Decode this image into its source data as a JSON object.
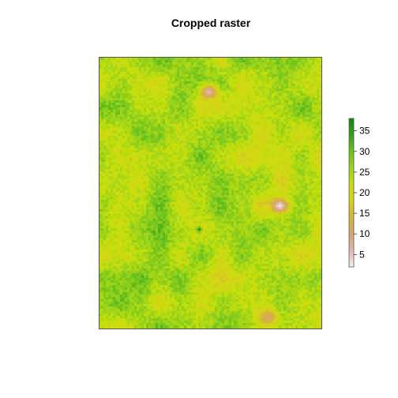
{
  "chart_data": {
    "type": "heatmap",
    "title": "Cropped raster",
    "xlabel": "",
    "ylabel": "",
    "grid": false,
    "colorbar": {
      "placement": "right",
      "range": [
        2,
        38
      ],
      "ticks": [
        5,
        10,
        15,
        20,
        25,
        30,
        35
      ],
      "tick_labels": [
        "5",
        "10",
        "15",
        "20",
        "25",
        "30",
        "35"
      ],
      "colors": [
        "#F2F2F2",
        "#E0B7A8",
        "#D7A56C",
        "#D4B33A",
        "#D9D21A",
        "#C7E00A",
        "#9CD31B",
        "#6CC31D",
        "#33A11A",
        "#0A8A0A"
      ]
    },
    "dimensions": {
      "columns": 94,
      "rows": 114
    },
    "typical_range": [
      18,
      30
    ],
    "dark_spots": [
      {
        "col": 42,
        "row": 72,
        "value": 37
      }
    ],
    "low_spots": [
      {
        "col": 46,
        "row": 14,
        "value": 6
      },
      {
        "col": 76,
        "row": 62,
        "value": 3
      },
      {
        "col": 71,
        "row": 109,
        "value": 10
      }
    ]
  }
}
